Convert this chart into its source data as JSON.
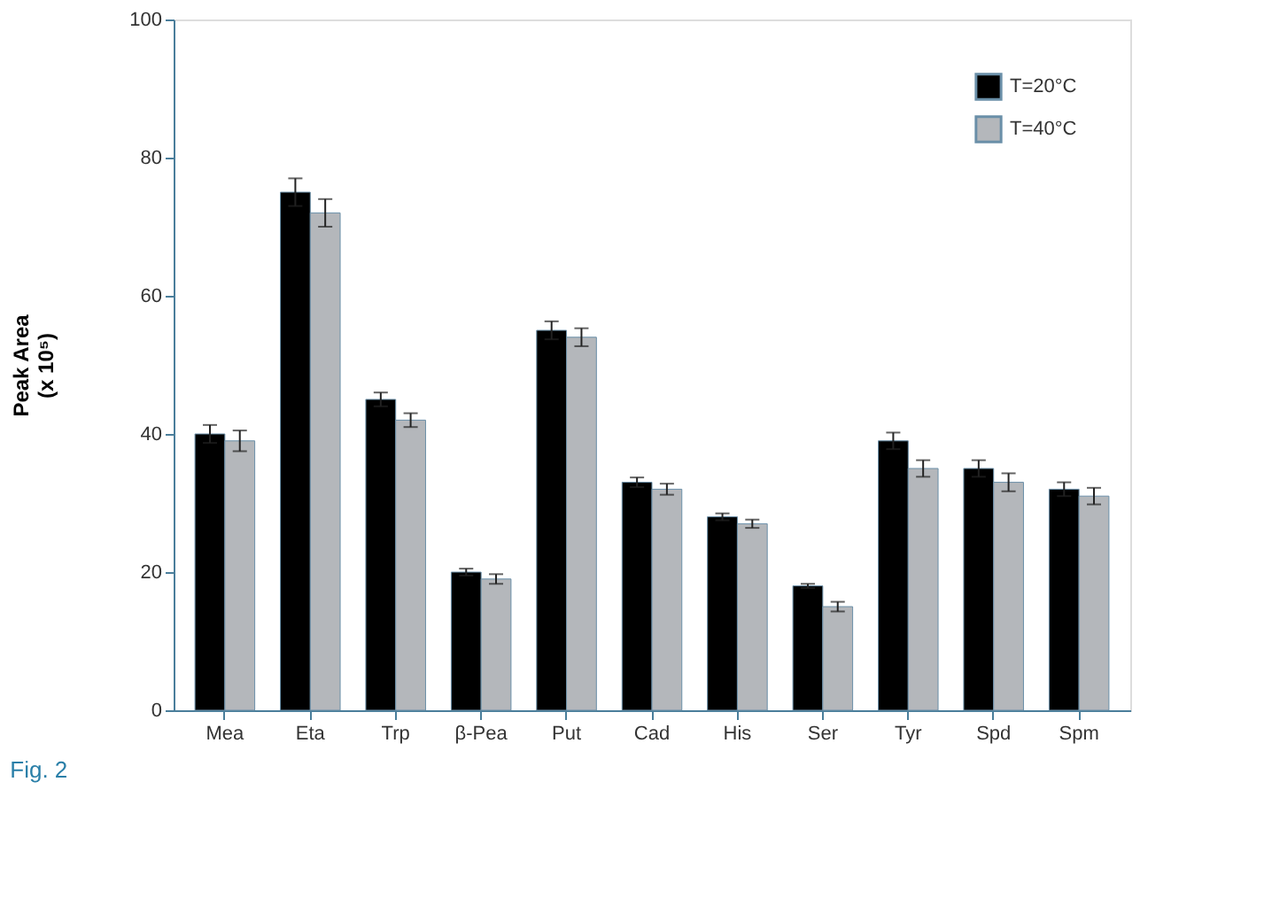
{
  "chart_data": {
    "type": "bar",
    "categories": [
      "Mea",
      "Eta",
      "Trp",
      "β-Pea",
      "Put",
      "Cad",
      "His",
      "Ser",
      "Tyr",
      "Spd",
      "Spm"
    ],
    "ylabel": "Peak Area\n(x 10⁵)",
    "series": [
      {
        "name": "T=20°C",
        "color": "#000000",
        "values": [
          40,
          75,
          45,
          20,
          55,
          33,
          28,
          18,
          39,
          35,
          32
        ],
        "errors": [
          1.3,
          2,
          1,
          0.5,
          1.3,
          0.7,
          0.5,
          0.3,
          1.2,
          1.2,
          1
        ]
      },
      {
        "name": "T=40°C",
        "color": "#b4b7bb",
        "values": [
          39,
          72,
          42,
          19,
          54,
          32,
          27,
          15,
          35,
          33,
          31
        ],
        "errors": [
          1.5,
          2,
          1,
          0.7,
          1.3,
          0.8,
          0.6,
          0.7,
          1.2,
          1.3,
          1.2
        ]
      }
    ],
    "ylim": [
      0,
      100
    ],
    "yticks": [
      0,
      20,
      40,
      60,
      80,
      100
    ],
    "grid": false,
    "legend": "top right",
    "annotations": [
      "Fig. 2"
    ]
  }
}
